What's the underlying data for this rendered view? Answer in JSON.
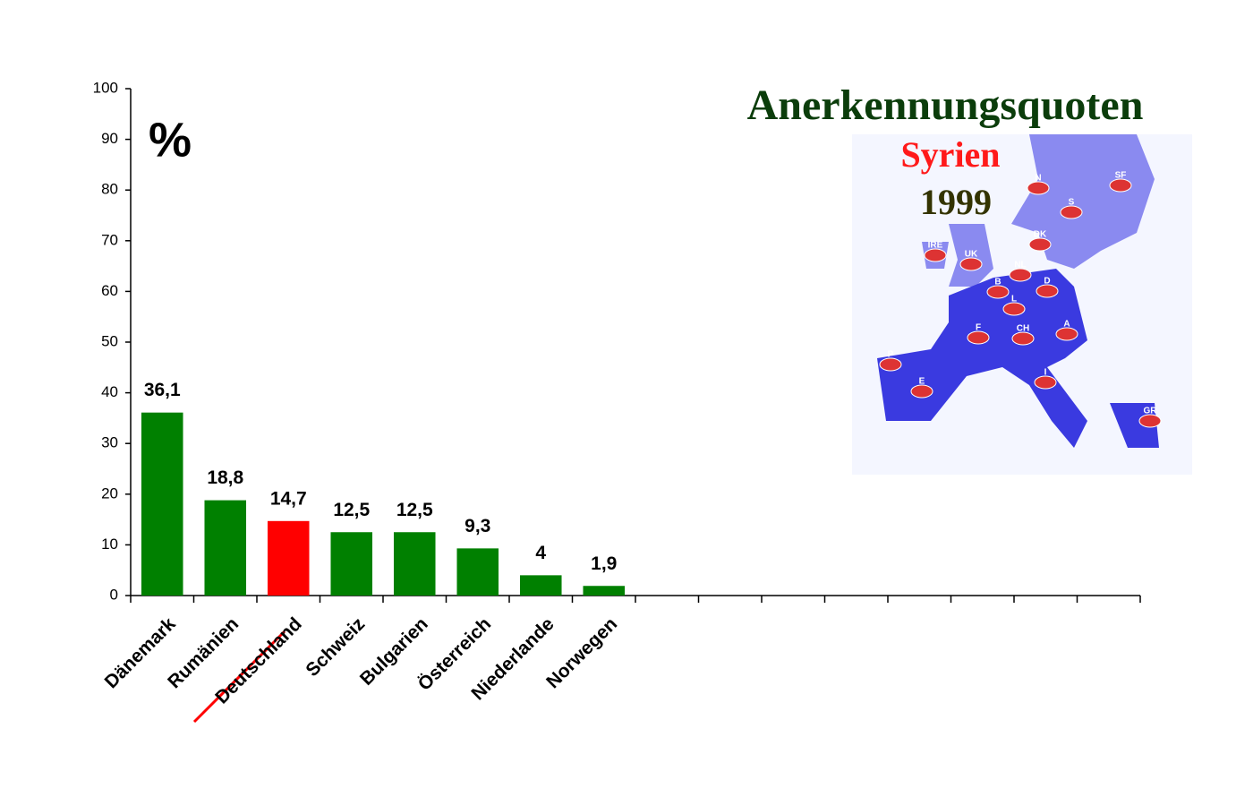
{
  "chart_data": {
    "type": "bar",
    "title": "Anerkennungsquoten",
    "subtitle": "Syrien",
    "year": "1999",
    "y_unit": "%",
    "categories": [
      "Dänemark",
      "Rumänien",
      "Deutschland",
      "Schweiz",
      "Bulgarien",
      "Österreich",
      "Niederlande",
      "Norwegen",
      null,
      null,
      null,
      null,
      null,
      null,
      null,
      null
    ],
    "values": [
      36.1,
      18.8,
      14.7,
      12.5,
      12.5,
      9.3,
      4,
      1.9,
      null,
      null,
      null,
      null,
      null,
      null,
      null,
      null
    ],
    "value_labels": [
      "36,1",
      "18,8",
      "14,7",
      "12,5",
      "12,5",
      "9,3",
      "4",
      "1,9",
      null,
      null,
      null,
      null,
      null,
      null,
      null,
      null
    ],
    "colors": [
      "#008000",
      "#008000",
      "#ff0000",
      "#008000",
      "#008000",
      "#008000",
      "#008000",
      "#008000",
      null,
      null,
      null,
      null,
      null,
      null,
      null,
      null
    ],
    "ylim": [
      0,
      100
    ],
    "yticks": [
      0,
      10,
      20,
      30,
      40,
      50,
      60,
      70,
      80,
      90,
      100
    ],
    "grid": false,
    "map_labels": [
      "N",
      "SF",
      "S",
      "DK",
      "IRE",
      "UK",
      "NL",
      "B",
      "D",
      "L",
      "F",
      "CH",
      "A",
      "P",
      "E",
      "I",
      "GR"
    ]
  }
}
